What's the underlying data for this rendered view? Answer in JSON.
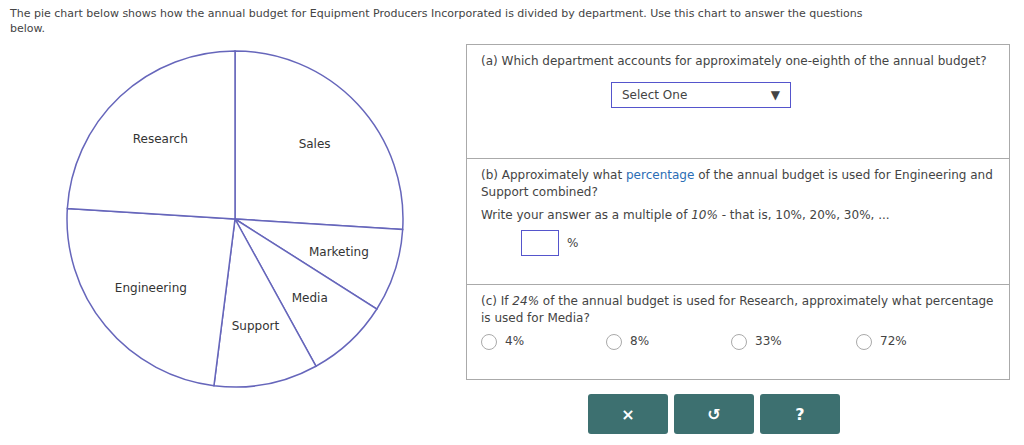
{
  "chart_data": {
    "type": "pie",
    "title": "The pie chart below shows how the annual budget for Equipment Producers Incorporated is divided by department. Use this chart to answer the questions\nbelow.",
    "categories": [
      "Sales",
      "Marketing",
      "Media",
      "Support",
      "Engineering",
      "Research"
    ],
    "values": [
      26,
      8,
      8,
      10,
      24,
      24
    ],
    "color": "#6666bb",
    "annotations": [
      "(a) Which department accounts for approximately one-eighth of the annual budget?",
      "Select One",
      "▼",
      "(b) Approximately what ",
      "percentage",
      " of the annual budget is used for Engineering and Support combined?",
      "Write your answer as a multiple of ",
      "10%",
      " - that is, 10%, 20%, 30%, ...",
      "%",
      "(c) If ",
      "24%",
      " of the annual budget is used for Research, approximately what percentage is used for Media?",
      "4%",
      "8%",
      "33%",
      "72%",
      "×",
      "↺",
      "?"
    ]
  }
}
